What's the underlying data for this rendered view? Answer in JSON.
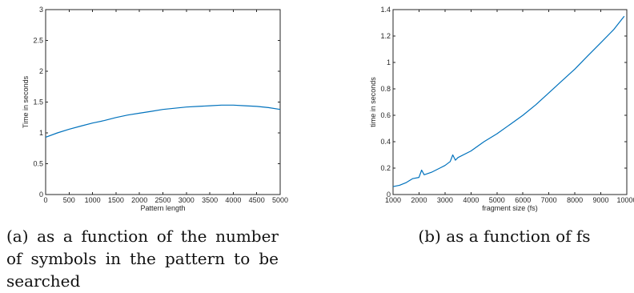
{
  "chart_data": [
    {
      "type": "line",
      "title": "",
      "xlabel": "Pattern length",
      "ylabel": "Time in seconds",
      "xlim": [
        0,
        5000
      ],
      "ylim": [
        0,
        3
      ],
      "xticks": [
        "0",
        "500",
        "1000",
        "1500",
        "2000",
        "2500",
        "3000",
        "3500",
        "4000",
        "4500",
        "5000"
      ],
      "yticks": [
        "0",
        "0.5",
        "1",
        "1.5",
        "2",
        "2.5",
        "3"
      ],
      "grid": false,
      "color": "#0072bd",
      "series": [
        {
          "x": [
            0,
            250,
            500,
            750,
            1000,
            1250,
            1500,
            1750,
            2000,
            2250,
            2500,
            2750,
            3000,
            3250,
            3500,
            3750,
            4000,
            4250,
            4500,
            4750,
            5000
          ],
          "y": [
            0.93,
            1.0,
            1.06,
            1.11,
            1.16,
            1.2,
            1.25,
            1.29,
            1.32,
            1.35,
            1.38,
            1.4,
            1.42,
            1.43,
            1.44,
            1.45,
            1.45,
            1.44,
            1.43,
            1.41,
            1.38
          ]
        }
      ]
    },
    {
      "type": "line",
      "title": "",
      "xlabel": "fragment size (fs)",
      "ylabel": "time in seconds",
      "xlim": [
        1000,
        10000
      ],
      "ylim": [
        0,
        1.4
      ],
      "xticks": [
        "1000",
        "2000",
        "3000",
        "4000",
        "5000",
        "6000",
        "7000",
        "8000",
        "9000",
        "10000"
      ],
      "yticks": [
        "0",
        "0.2",
        "0.4",
        "0.6",
        "0.8",
        "1",
        "1.2",
        "1.4"
      ],
      "grid": false,
      "color": "#0072bd",
      "series": [
        {
          "x": [
            1000,
            1250,
            1500,
            1750,
            2000,
            2100,
            2200,
            2500,
            2800,
            3000,
            3200,
            3300,
            3400,
            3500,
            4000,
            4500,
            5000,
            5500,
            6000,
            6500,
            7000,
            7500,
            8000,
            8500,
            9000,
            9500,
            9900
          ],
          "y": [
            0.06,
            0.07,
            0.09,
            0.12,
            0.13,
            0.185,
            0.15,
            0.17,
            0.2,
            0.22,
            0.25,
            0.3,
            0.26,
            0.28,
            0.33,
            0.4,
            0.46,
            0.53,
            0.6,
            0.68,
            0.77,
            0.86,
            0.95,
            1.05,
            1.15,
            1.25,
            1.35
          ]
        }
      ]
    }
  ],
  "captions": {
    "a": "(a) as a function of the number of symbols in the pattern to be searched",
    "b": "(b) as a function of fs"
  }
}
